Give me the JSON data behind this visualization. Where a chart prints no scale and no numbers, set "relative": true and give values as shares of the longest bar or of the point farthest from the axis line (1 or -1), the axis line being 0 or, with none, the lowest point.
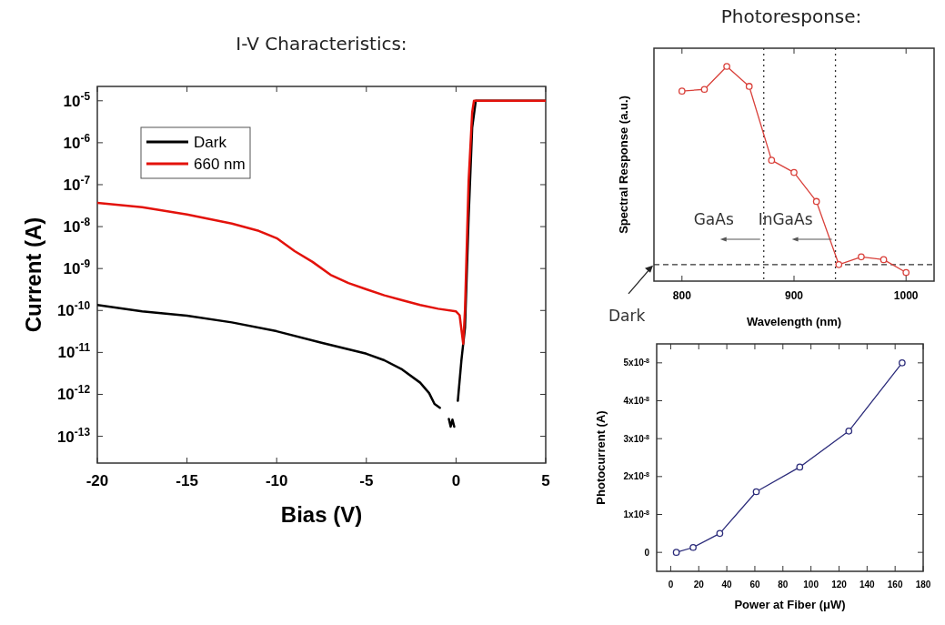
{
  "chart_data": [
    {
      "type": "line",
      "title": "I-V Characteristics:",
      "xlabel": "Bias (V)",
      "ylabel": "Current (A)",
      "log": "y",
      "xlim": [
        -20,
        5
      ],
      "xticks": [
        -20,
        -15,
        -10,
        -5,
        0,
        5
      ],
      "ylim": [
        2.3e-14,
        2.2e-05
      ],
      "yticks": [
        {
          "value": 1e-05,
          "label": "10$^{-5}$"
        },
        {
          "value": 1e-06,
          "label": "10$^{-6}$"
        },
        {
          "value": 1e-07,
          "label": "10$^{-7}$"
        },
        {
          "value": 1e-08,
          "label": "10$^{-8}$"
        },
        {
          "value": 1e-09,
          "label": "10$^{-9}$"
        },
        {
          "value": 1e-10,
          "label": "10$^{-10}$"
        },
        {
          "value": 1e-11,
          "label": "10$^{-11}$"
        },
        {
          "value": 1e-12,
          "label": "10$^{-12}$"
        },
        {
          "value": 1e-13,
          "label": "10$^{-13}$"
        }
      ],
      "grid": false,
      "legend": "top left",
      "marker": "none",
      "line_style": "solid",
      "series": [
        {
          "name": "Dark",
          "color": "#000000",
          "x": [
            -20,
            -17.5,
            -15,
            -12.5,
            -10,
            -7.5,
            -5,
            -4,
            -3,
            -2,
            -1.5,
            -1.2,
            -0.9,
            -0.75,
            -0.55,
            -0.4,
            -0.3,
            -0.2,
            -0.1,
            0,
            0.1,
            0.3,
            0.5,
            0.7,
            0.9,
            1.1,
            5
          ],
          "values": [
            1.35e-10,
            9.5e-11,
            7.5e-11,
            5.2e-11,
            3.2e-11,
            1.7e-11,
            9.3e-12,
            6.5e-12,
            3.9e-12,
            1.9e-12,
            1.07e-12,
            5.9e-13,
            4.8e-13,
            null,
            null,
            2.6e-13,
            1.7e-13,
            2.5e-13,
            1.7e-13,
            null,
            7e-13,
            6.5e-12,
            3.9e-11,
            1.6e-08,
            2.3e-06,
            1e-05,
            1e-05
          ]
        },
        {
          "name": "660 nm",
          "color": "#e3120b",
          "x": [
            -20,
            -17.5,
            -15,
            -12.5,
            -11,
            -10,
            -9,
            -8,
            -7,
            -6,
            -5,
            -4,
            -3,
            -2,
            -1,
            0,
            0.2,
            0.4,
            0.5,
            0.7,
            0.9,
            1,
            5
          ],
          "values": [
            3.7e-08,
            2.9e-08,
            1.94e-08,
            1.18e-08,
            7.9e-09,
            5.3e-09,
            2.6e-09,
            1.44e-09,
            7.1e-10,
            4.5e-10,
            3.2e-10,
            2.3e-10,
            1.75e-10,
            1.35e-10,
            1.1e-10,
            9.5e-11,
            7.7e-11,
            1.6e-11,
            1.05e-10,
            1.18e-07,
            5.3e-06,
            1e-05,
            1e-05
          ]
        }
      ]
    },
    {
      "type": "line",
      "title": "Photoresponse:",
      "xlabel": "Wavelength (nm)",
      "ylabel": "Spectral Response (a.u.)",
      "relative": true,
      "xlim": [
        775,
        1025
      ],
      "xticks": [
        800,
        900,
        1000
      ],
      "grid": false,
      "marker": "circle",
      "line_style": "solid",
      "series": [
        {
          "color": "#d9403a",
          "x": [
            800,
            820,
            840,
            860,
            880,
            900,
            920,
            940,
            960,
            980,
            1000
          ],
          "values": [
            0.885,
            0.893,
            1,
            0.907,
            0.563,
            0.506,
            0.371,
            0.077,
            0.113,
            0.1,
            0.04
          ]
        }
      ],
      "ref_lines": [
        {
          "axis": "x",
          "value": 873,
          "line_style": "dotted",
          "color": "#333333"
        },
        {
          "axis": "x",
          "value": 937,
          "line_style": "dotted",
          "color": "#333333"
        },
        {
          "axis": "y",
          "value": 0.077,
          "label": "Dark",
          "line_style": "dashed",
          "color": "#333333"
        }
      ],
      "annotations": [
        "GaAs",
        "InGaAs"
      ]
    },
    {
      "type": "line",
      "xlabel": "Power at Fiber (μW)",
      "ylabel": "Photocurrent (A)",
      "xlim": [
        -10,
        180
      ],
      "xticks": [
        0,
        20,
        40,
        60,
        80,
        100,
        120,
        140,
        160,
        180
      ],
      "ylim": [
        -5e-09,
        5.5e-08
      ],
      "yticks": [
        {
          "value": 0,
          "label": "0"
        },
        {
          "value": 1e-08,
          "label": "1x10$^{-8}$"
        },
        {
          "value": 2e-08,
          "label": "2x10$^{-8}$"
        },
        {
          "value": 3e-08,
          "label": "3x10$^{-8}$"
        },
        {
          "value": 4e-08,
          "label": "4x10$^{-8}$"
        },
        {
          "value": 5e-08,
          "label": "5x10$^{-8}$"
        }
      ],
      "grid": false,
      "marker": "circle",
      "line_style": "solid",
      "series": [
        {
          "color": "#2b2b7a",
          "x": [
            4,
            16,
            35,
            61,
            92,
            127,
            165
          ],
          "values": [
            0,
            1.3e-09,
            5e-09,
            1.6e-08,
            2.25e-08,
            3.2e-08,
            5e-08
          ]
        }
      ]
    }
  ]
}
